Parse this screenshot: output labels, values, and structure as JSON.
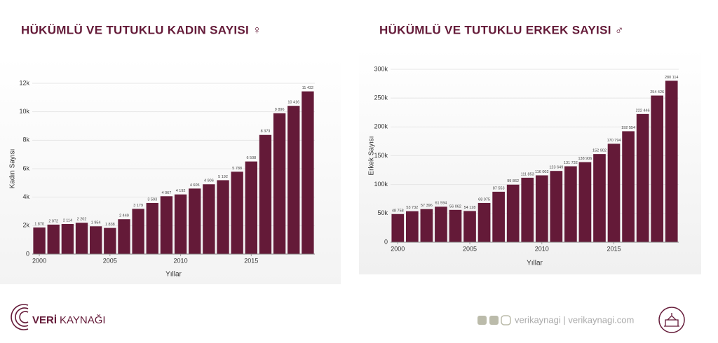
{
  "chart_data": [
    {
      "type": "bar",
      "title": "HÜKÜMLÜ VE TUTUKLU KADIN SAYISI ♀",
      "xlabel": "Yıllar",
      "ylabel": "Kadın Sayısı",
      "color": "#641a38",
      "x": [
        2000,
        2001,
        2002,
        2003,
        2004,
        2005,
        2006,
        2007,
        2008,
        2009,
        2010,
        2011,
        2012,
        2013,
        2014,
        2015,
        2016,
        2017,
        2018,
        2019
      ],
      "values": [
        1870,
        2072,
        2114,
        2202,
        1954,
        1838,
        2449,
        3179,
        3593,
        4067,
        4192,
        4605,
        4906,
        5192,
        5788,
        6508,
        8373,
        9896,
        10416,
        11432
      ],
      "value_labels": [
        "1 870",
        "2 072",
        "2 114",
        "2 202",
        "1 954",
        "1 838",
        "2 449",
        "3 179",
        "3 593",
        "4 067",
        "4 192",
        "4 605",
        "4 906",
        "5 192",
        "5 788",
        "6 508",
        "8 373",
        "9 896",
        "10 416",
        "11 432"
      ],
      "xlim": [
        1999.5,
        2019.5
      ],
      "xticks": [
        2000,
        2005,
        2010,
        2015
      ],
      "ylim": [
        0,
        12000
      ],
      "yticks": [
        0,
        {
          "value": 2000,
          "label": "2k"
        },
        {
          "value": 4000,
          "label": "4k"
        },
        {
          "value": 6000,
          "label": "6k"
        },
        {
          "value": 8000,
          "label": "8k"
        },
        {
          "value": 10000,
          "label": "10k"
        },
        {
          "value": 12000,
          "label": "12k"
        }
      ],
      "grid": true
    },
    {
      "type": "bar",
      "title": "HÜKÜMLÜ VE TUTUKLU ERKEK SAYISI ♂",
      "xlabel": "Yıllar",
      "ylabel": "Erkek Sayısı",
      "color": "#641a38",
      "x": [
        2000,
        2001,
        2002,
        2003,
        2004,
        2005,
        2006,
        2007,
        2008,
        2009,
        2010,
        2011,
        2012,
        2013,
        2014,
        2015,
        2016,
        2017,
        2018,
        2019
      ],
      "values": [
        48758,
        53732,
        57396,
        61594,
        56062,
        54128,
        68075,
        87553,
        99862,
        111853,
        116002,
        123649,
        131732,
        138906,
        152902,
        170794,
        192554,
        222446,
        254426,
        280114
      ],
      "value_labels": [
        "48 758",
        "53 732",
        "57 396",
        "61 594",
        "56 062",
        "54 128",
        "68 075",
        "87 553",
        "99 862",
        "111 853",
        "116 002",
        "123 649",
        "131 732",
        "138 906",
        "152 902",
        "170 794",
        "192 554",
        "222 446",
        "254 426",
        "280 114"
      ],
      "xlim": [
        1999.5,
        2019.5
      ],
      "xticks": [
        2000,
        2005,
        2010,
        2015
      ],
      "ylim": [
        0,
        300000
      ],
      "yticks": [
        0,
        {
          "value": 50000,
          "label": "50k"
        },
        {
          "value": 100000,
          "label": "100k"
        },
        {
          "value": 150000,
          "label": "150k"
        },
        {
          "value": 200000,
          "label": "200k"
        },
        {
          "value": 250000,
          "label": "250k"
        },
        {
          "value": 300000,
          "label": "300k"
        }
      ],
      "grid": true
    }
  ],
  "footer": {
    "brand_bold": "VERİ",
    "brand_light": "KAYNAĞI",
    "social": "verikaynagi | verikaynagi.com"
  }
}
